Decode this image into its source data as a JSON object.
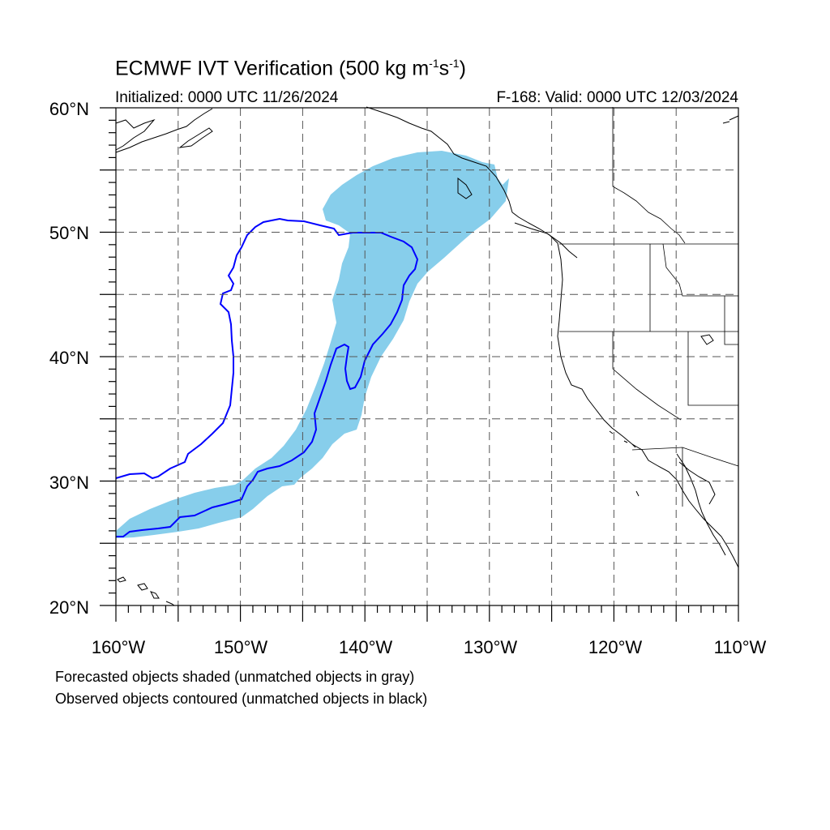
{
  "title": {
    "prefix": "ECMWF IVT Verification (500 kg m",
    "exp1": "-1",
    "mid": "s",
    "exp2": "-1",
    "suffix": ")"
  },
  "subtitle_left": "Initialized: 0000 UTC 11/26/2024",
  "subtitle_right": "F-168: Valid: 0000 UTC 12/03/2024",
  "axes": {
    "lon_ticks": [
      "160°W",
      "150°W",
      "140°W",
      "130°W",
      "120°W",
      "110°W"
    ],
    "lat_ticks": [
      "60°N",
      "50°N",
      "40°N",
      "30°N",
      "20°N"
    ]
  },
  "footer": {
    "line1": "Forecasted objects shaded (unmatched objects in gray)",
    "line2": "Observed objects contoured (unmatched objects in black)"
  },
  "colors": {
    "forecast_fill": "#87ceeb",
    "observed_contour": "#0000ff",
    "coastline": "#000000",
    "gridline": "#555555"
  },
  "map_extent": {
    "lon": [
      -160,
      -110
    ],
    "lat": [
      20,
      60
    ],
    "grid_spacing_deg": 5
  }
}
